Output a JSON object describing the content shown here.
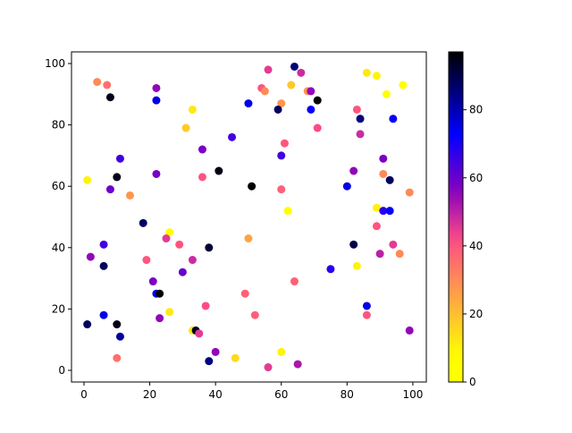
{
  "chart_data": {
    "type": "scatter",
    "title": "",
    "xlabel": "",
    "ylabel": "",
    "xlim": [
      -3.8,
      104.1
    ],
    "ylim": [
      -3.8,
      103.8
    ],
    "xticks": [
      0,
      20,
      40,
      60,
      80,
      100
    ],
    "yticks": [
      0,
      20,
      40,
      60,
      80,
      100
    ],
    "grid": false,
    "colormap": "gnuplot2_r",
    "colorbar": {
      "range": [
        0,
        97
      ],
      "ticks": [
        0,
        20,
        40,
        60,
        80
      ],
      "placement": "right"
    },
    "points": [
      {
        "x": 4,
        "y": 94,
        "c": 30
      },
      {
        "x": 7,
        "y": 93,
        "c": 35
      },
      {
        "x": 8,
        "y": 89,
        "c": 95
      },
      {
        "x": 22,
        "y": 92,
        "c": 55
      },
      {
        "x": 22,
        "y": 88,
        "c": 75
      },
      {
        "x": 33,
        "y": 85,
        "c": 12
      },
      {
        "x": 31,
        "y": 79,
        "c": 18
      },
      {
        "x": 50,
        "y": 87,
        "c": 75
      },
      {
        "x": 56,
        "y": 98,
        "c": 45
      },
      {
        "x": 64,
        "y": 99,
        "c": 85
      },
      {
        "x": 66,
        "y": 97,
        "c": 48
      },
      {
        "x": 54,
        "y": 92,
        "c": 40
      },
      {
        "x": 55,
        "y": 91,
        "c": 30
      },
      {
        "x": 63,
        "y": 93,
        "c": 18
      },
      {
        "x": 60,
        "y": 87,
        "c": 28
      },
      {
        "x": 59,
        "y": 85,
        "c": 88
      },
      {
        "x": 68,
        "y": 91,
        "c": 28
      },
      {
        "x": 69,
        "y": 91,
        "c": 55
      },
      {
        "x": 71,
        "y": 88,
        "c": 97
      },
      {
        "x": 69,
        "y": 85,
        "c": 72
      },
      {
        "x": 86,
        "y": 97,
        "c": 12
      },
      {
        "x": 89,
        "y": 96,
        "c": 10
      },
      {
        "x": 92,
        "y": 90,
        "c": 5
      },
      {
        "x": 97,
        "y": 93,
        "c": 2
      },
      {
        "x": 83,
        "y": 85,
        "c": 40
      },
      {
        "x": 84,
        "y": 82,
        "c": 85
      },
      {
        "x": 94,
        "y": 82,
        "c": 72
      },
      {
        "x": 71,
        "y": 79,
        "c": 42
      },
      {
        "x": 84,
        "y": 77,
        "c": 48
      },
      {
        "x": 61,
        "y": 74,
        "c": 40
      },
      {
        "x": 60,
        "y": 70,
        "c": 65
      },
      {
        "x": 45,
        "y": 76,
        "c": 65
      },
      {
        "x": 36,
        "y": 72,
        "c": 58
      },
      {
        "x": 41,
        "y": 65,
        "c": 95
      },
      {
        "x": 51,
        "y": 60,
        "c": 97
      },
      {
        "x": 36,
        "y": 63,
        "c": 40
      },
      {
        "x": 22,
        "y": 64,
        "c": 58
      },
      {
        "x": 11,
        "y": 69,
        "c": 65
      },
      {
        "x": 10,
        "y": 63,
        "c": 95
      },
      {
        "x": 8,
        "y": 59,
        "c": 60
      },
      {
        "x": 1,
        "y": 62,
        "c": 10
      },
      {
        "x": 14,
        "y": 57,
        "c": 28
      },
      {
        "x": 18,
        "y": 48,
        "c": 88
      },
      {
        "x": 26,
        "y": 45,
        "c": 5
      },
      {
        "x": 25,
        "y": 43,
        "c": 45
      },
      {
        "x": 29,
        "y": 41,
        "c": 40
      },
      {
        "x": 38,
        "y": 40,
        "c": 92
      },
      {
        "x": 50,
        "y": 43,
        "c": 25
      },
      {
        "x": 60,
        "y": 59,
        "c": 38
      },
      {
        "x": 62,
        "y": 52,
        "c": 3
      },
      {
        "x": 80,
        "y": 60,
        "c": 75
      },
      {
        "x": 82,
        "y": 65,
        "c": 55
      },
      {
        "x": 91,
        "y": 69,
        "c": 58
      },
      {
        "x": 91,
        "y": 64,
        "c": 30
      },
      {
        "x": 93,
        "y": 62,
        "c": 88
      },
      {
        "x": 89,
        "y": 53,
        "c": 10
      },
      {
        "x": 91,
        "y": 52,
        "c": 68
      },
      {
        "x": 93,
        "y": 52,
        "c": 72
      },
      {
        "x": 99,
        "y": 58,
        "c": 30
      },
      {
        "x": 82,
        "y": 41,
        "c": 90
      },
      {
        "x": 89,
        "y": 47,
        "c": 40
      },
      {
        "x": 94,
        "y": 41,
        "c": 45
      },
      {
        "x": 90,
        "y": 38,
        "c": 50
      },
      {
        "x": 96,
        "y": 38,
        "c": 30
      },
      {
        "x": 83,
        "y": 34,
        "c": 10
      },
      {
        "x": 75,
        "y": 33,
        "c": 68
      },
      {
        "x": 64,
        "y": 29,
        "c": 38
      },
      {
        "x": 49,
        "y": 25,
        "c": 38
      },
      {
        "x": 52,
        "y": 18,
        "c": 38
      },
      {
        "x": 86,
        "y": 21,
        "c": 75
      },
      {
        "x": 86,
        "y": 18,
        "c": 40
      },
      {
        "x": 99,
        "y": 13,
        "c": 55
      },
      {
        "x": 6,
        "y": 41,
        "c": 65
      },
      {
        "x": 2,
        "y": 37,
        "c": 55
      },
      {
        "x": 6,
        "y": 34,
        "c": 88
      },
      {
        "x": 19,
        "y": 36,
        "c": 40
      },
      {
        "x": 21,
        "y": 29,
        "c": 58
      },
      {
        "x": 22,
        "y": 25,
        "c": 75
      },
      {
        "x": 23,
        "y": 25,
        "c": 97
      },
      {
        "x": 30,
        "y": 32,
        "c": 60
      },
      {
        "x": 33,
        "y": 36,
        "c": 48
      },
      {
        "x": 37,
        "y": 21,
        "c": 42
      },
      {
        "x": 26,
        "y": 19,
        "c": 12
      },
      {
        "x": 23,
        "y": 17,
        "c": 55
      },
      {
        "x": 33,
        "y": 13,
        "c": 12
      },
      {
        "x": 34,
        "y": 13,
        "c": 95
      },
      {
        "x": 35,
        "y": 12,
        "c": 45
      },
      {
        "x": 6,
        "y": 18,
        "c": 75
      },
      {
        "x": 1,
        "y": 15,
        "c": 88
      },
      {
        "x": 10,
        "y": 15,
        "c": 95
      },
      {
        "x": 11,
        "y": 11,
        "c": 82
      },
      {
        "x": 10,
        "y": 4,
        "c": 35
      },
      {
        "x": 38,
        "y": 3,
        "c": 85
      },
      {
        "x": 40,
        "y": 6,
        "c": 55
      },
      {
        "x": 46,
        "y": 4,
        "c": 15
      },
      {
        "x": 56,
        "y": 1,
        "c": 45
      },
      {
        "x": 60,
        "y": 6,
        "c": 10
      },
      {
        "x": 65,
        "y": 2,
        "c": 52
      }
    ]
  }
}
